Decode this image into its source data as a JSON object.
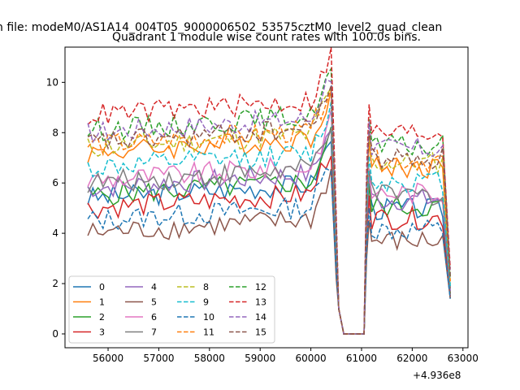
{
  "chart_data": {
    "type": "line",
    "suptitle": "n file: modeM0/AS1A14_004T05_9000006502_53575cztM0_level2_quad_clean",
    "title": "Quadrant 1 module wise count rates with 100.0s bins.",
    "xlabel": "",
    "ylabel": "",
    "x_offset_label": "+4.936e8",
    "xlim": [
      55150,
      63100
    ],
    "ylim": [
      -0.55,
      11.4
    ],
    "xticks": [
      56000,
      57000,
      58000,
      59000,
      60000,
      61000,
      62000,
      63000
    ],
    "yticks": [
      0,
      2,
      4,
      6,
      8,
      10
    ],
    "legend_position": "lower-left",
    "series": [
      {
        "name": "0",
        "color": "#1f77b4",
        "dash": "solid",
        "base": 5.4,
        "end": 1.4
      },
      {
        "name": "1",
        "color": "#ff7f0e",
        "dash": "solid",
        "base": 7.2,
        "end": 1.8
      },
      {
        "name": "2",
        "color": "#2ca02c",
        "dash": "solid",
        "base": 5.5,
        "end": 1.6
      },
      {
        "name": "3",
        "color": "#d62728",
        "dash": "solid",
        "base": 5.0,
        "end": 1.5
      },
      {
        "name": "4",
        "color": "#9467bd",
        "dash": "solid",
        "base": 5.8,
        "end": 1.7
      },
      {
        "name": "5",
        "color": "#8c564b",
        "dash": "solid",
        "base": 4.0,
        "end": 1.4
      },
      {
        "name": "6",
        "color": "#e377c2",
        "dash": "solid",
        "base": 6.1,
        "end": 1.8
      },
      {
        "name": "7",
        "color": "#7f7f7f",
        "dash": "solid",
        "base": 6.0,
        "end": 1.8
      },
      {
        "name": "8",
        "color": "#bcbd22",
        "dash": "dashed",
        "base": 7.4,
        "end": 2.0
      },
      {
        "name": "9",
        "color": "#17becf",
        "dash": "dashed",
        "base": 6.6,
        "end": 1.9
      },
      {
        "name": "10",
        "color": "#1f77b4",
        "dash": "dashed",
        "base": 4.5,
        "end": 1.4
      },
      {
        "name": "11",
        "color": "#ff7f0e",
        "dash": "dashed",
        "base": 7.5,
        "end": 2.1
      },
      {
        "name": "12",
        "color": "#2ca02c",
        "dash": "dashed",
        "base": 8.1,
        "end": 2.3
      },
      {
        "name": "13",
        "color": "#d62728",
        "dash": "dashed",
        "base": 8.7,
        "end": 2.6
      },
      {
        "name": "14",
        "color": "#9467bd",
        "dash": "dashed",
        "base": 8.0,
        "end": 2.4
      },
      {
        "name": "15",
        "color": "#8c564b",
        "dash": "dashed",
        "base": 7.6,
        "end": 2.2
      }
    ],
    "time_segments": [
      {
        "from": 55600,
        "to": 60400,
        "step": 100
      },
      {
        "from": 60400,
        "to": 61100,
        "step": 100
      },
      {
        "from": 61100,
        "to": 62750,
        "step": 100
      }
    ]
  }
}
